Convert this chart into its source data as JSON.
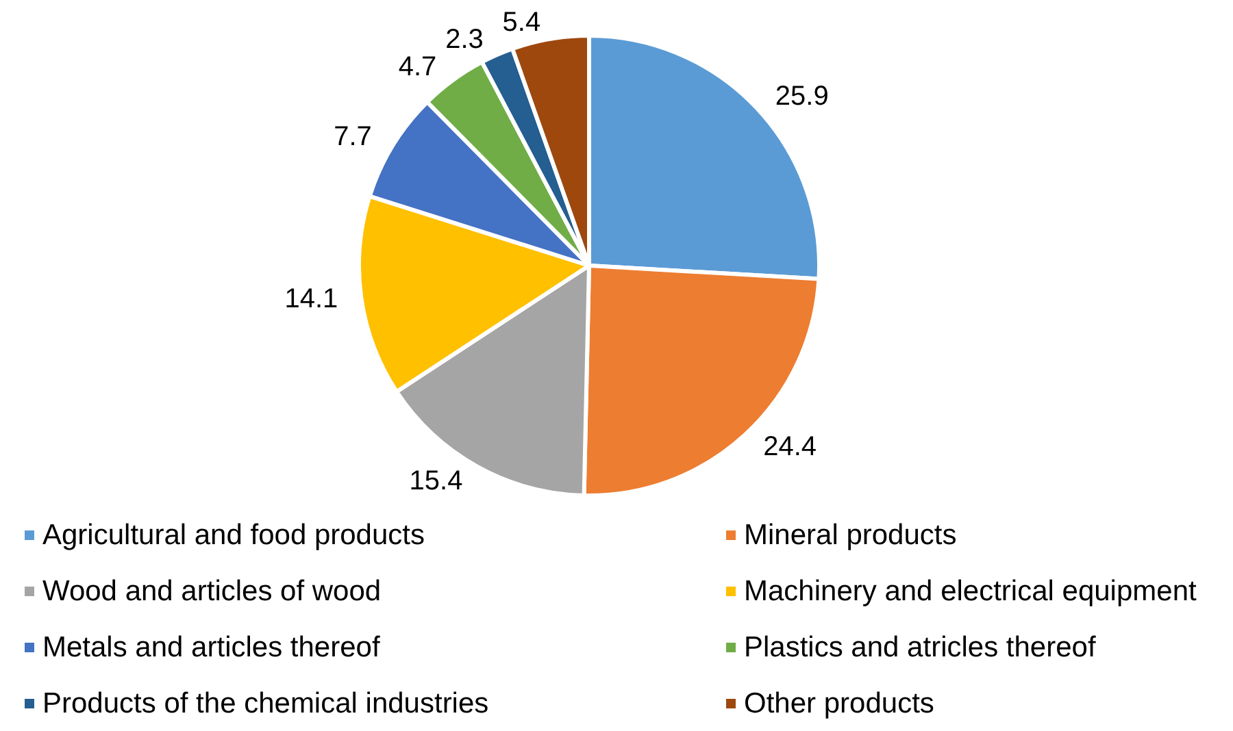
{
  "chart_data": {
    "type": "pie",
    "categories": [
      "Agricultural and food products",
      "Mineral products",
      "Wood and articles of wood",
      "Machinery and electrical equipment",
      "Metals and articles thereof",
      "Plastics and atricles thereof",
      "Products of the chemical industries",
      "Other products"
    ],
    "values": [
      25.9,
      24.4,
      15.4,
      14.1,
      7.7,
      4.7,
      2.3,
      5.4
    ],
    "colors": [
      "#5b9bd5",
      "#ed7d31",
      "#a5a5a5",
      "#ffc000",
      "#4472c4",
      "#70ad47",
      "#255e91",
      "#9e480e"
    ],
    "data_labels": true,
    "legend": "bottom"
  }
}
